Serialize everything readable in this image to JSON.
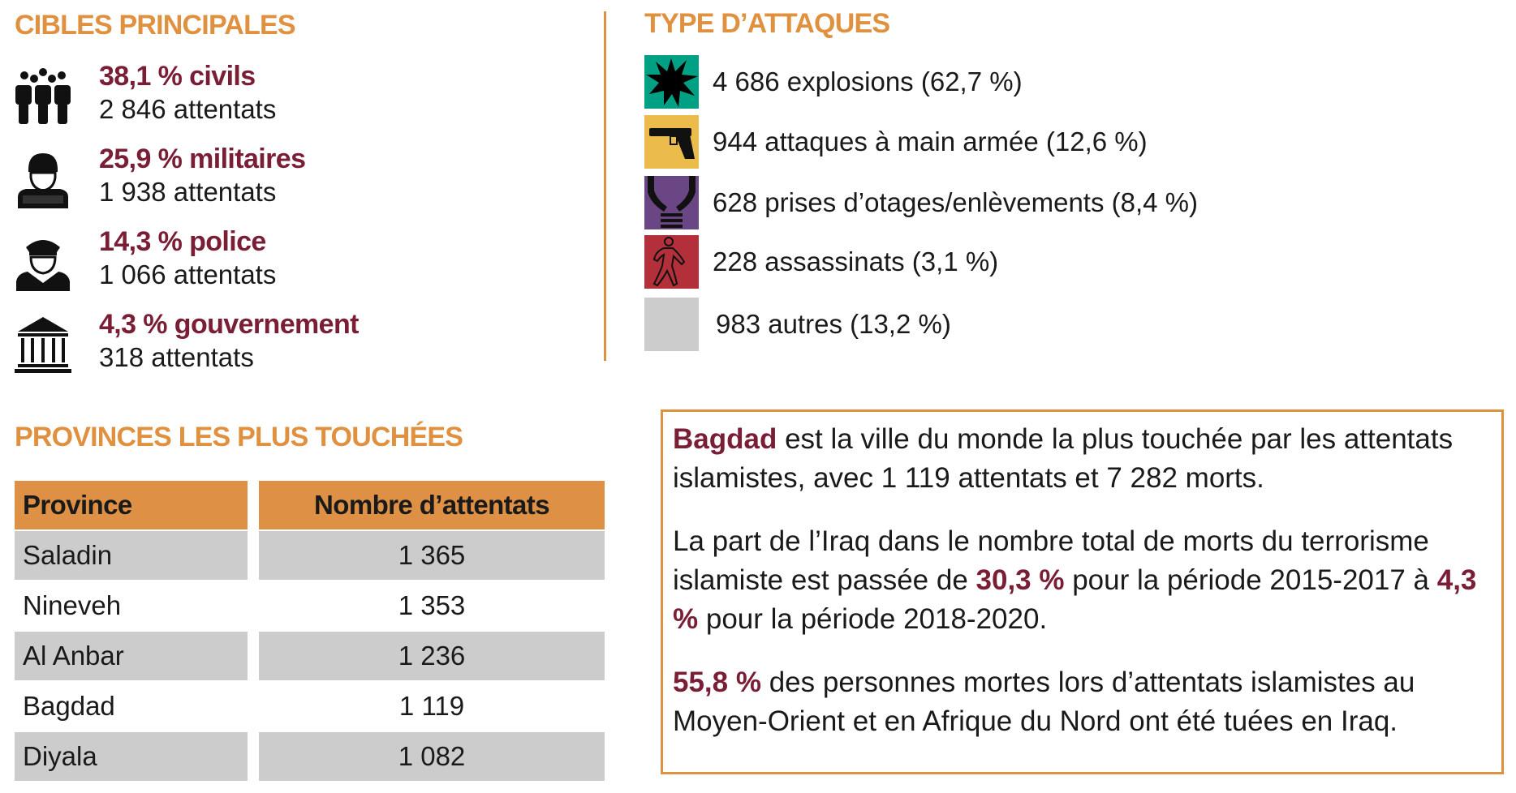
{
  "targets": {
    "title": "CIBLES PRINCIPALES",
    "items": [
      {
        "icon": "civilians-icon",
        "pct": "38,1 % civils",
        "count": "2 846 attentats"
      },
      {
        "icon": "soldier-icon",
        "pct": "25,9 % militaires",
        "count": "1 938 attentats"
      },
      {
        "icon": "police-officer-icon",
        "pct": "14,3 % police",
        "count": "1 066 attentats"
      },
      {
        "icon": "government-building-icon",
        "pct": "4,3 % gouvernement",
        "count": "318 attentats"
      }
    ]
  },
  "attacks": {
    "title": "TYPE D’ATTAQUES",
    "items": [
      {
        "icon": "explosion-icon",
        "color": "#00A085",
        "label": "4 686 explosions (62,7 %)"
      },
      {
        "icon": "handgun-icon",
        "color": "#EBBC4C",
        "label": "944 attaques à main armée (12,6 %)"
      },
      {
        "icon": "bound-hands-icon",
        "color": "#6A4784",
        "label": "628 prises d’otages/enlèvements (8,4 %)"
      },
      {
        "icon": "body-outline-icon",
        "color": "#B3303A",
        "label": "228 assassinats (3,1 %)"
      },
      {
        "icon": "none",
        "color": "#CCCCCC",
        "label": "983 autres (13,2 %)"
      }
    ]
  },
  "provinces": {
    "title": "PROVINCES LES PLUS TOUCHÉES",
    "headers": [
      "Province",
      "Nombre d’attentats"
    ],
    "rows": [
      [
        "Saladin",
        "1 365"
      ],
      [
        "Nineveh",
        "1 353"
      ],
      [
        "Al Anbar",
        "1 236"
      ],
      [
        "Bagdad",
        "1 119"
      ],
      [
        "Diyala",
        "1 082"
      ]
    ]
  },
  "facts": {
    "p1": {
      "hl": "Bagdad",
      "text": " est la ville du monde la plus touchée par les attentats islamistes, avec 1 119 attentats et 7 282 morts."
    },
    "p2": {
      "a": "La part de l’Iraq dans le nombre total de morts du terrorisme islamiste est passée de ",
      "hl1": "30,3 %",
      "b": " pour la période 2015-2017 à ",
      "hl2": "4,3 %",
      "c": " pour la période 2018-2020."
    },
    "p3": {
      "hl": "55,8 %",
      "text": " des personnes mortes lors d’attentats islamistes au Moyen-Orient et en Afrique du Nord ont été tuées en Iraq."
    }
  },
  "colors": {
    "accent": "#E0913F",
    "highlight": "#7A1E35",
    "row_gray": "#CCCCCC"
  }
}
